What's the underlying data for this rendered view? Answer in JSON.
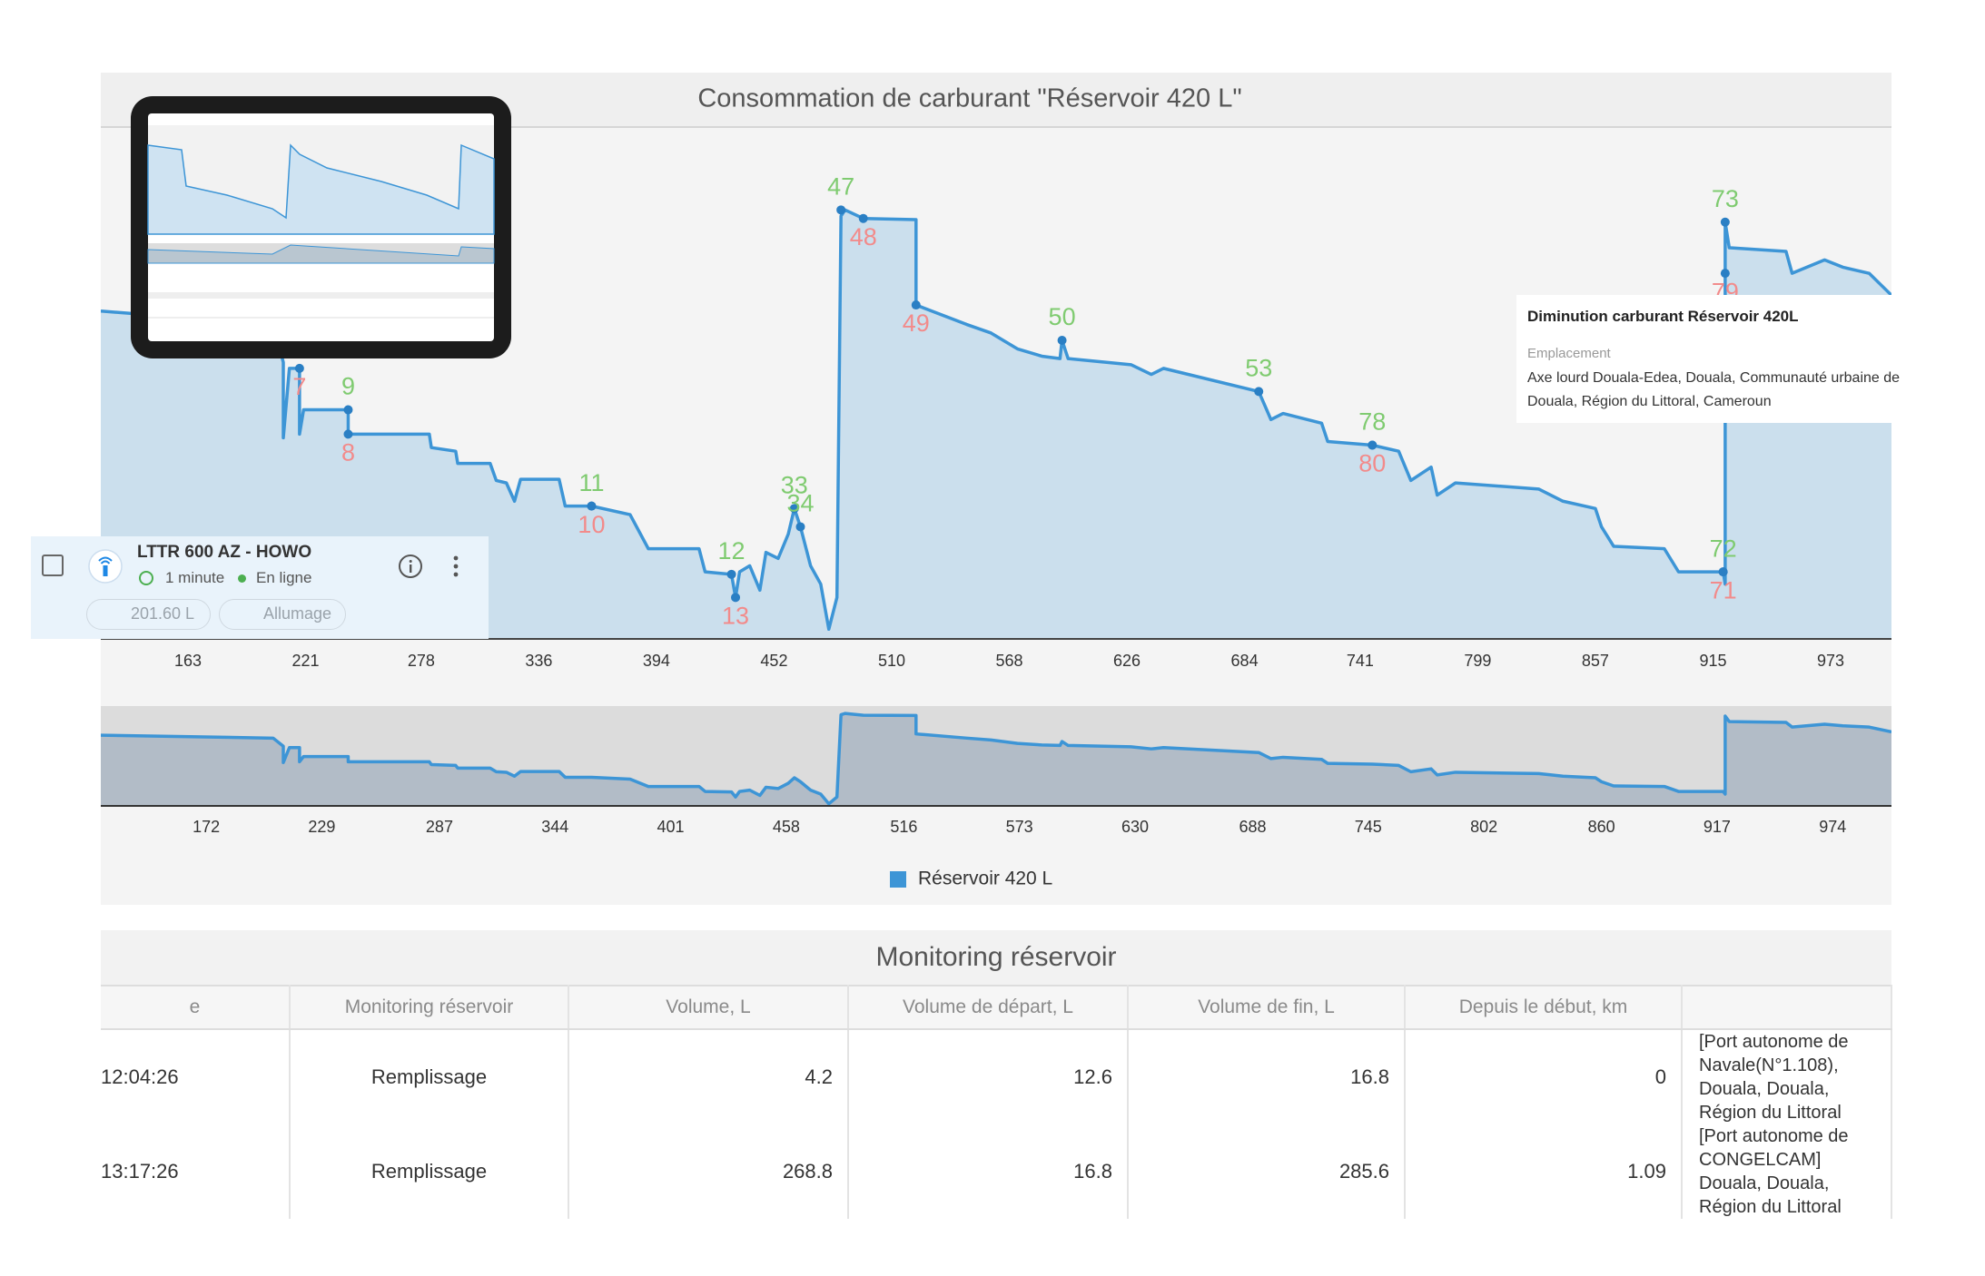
{
  "chart_data": {
    "type": "line",
    "title": "Consommation de carburant \"Réservoir 420 L\"",
    "x": [
      120,
      205,
      210,
      210,
      213,
      218,
      218,
      220,
      242,
      242,
      282,
      283,
      295,
      296,
      312,
      315,
      320,
      324,
      327,
      346,
      349,
      362,
      381,
      390,
      415,
      418,
      431,
      433,
      435,
      440,
      445,
      448,
      454,
      459,
      462,
      465,
      470,
      475,
      479,
      483,
      485,
      487,
      496,
      522,
      522,
      547,
      559,
      572,
      584,
      593,
      594,
      597,
      628,
      638,
      644,
      691,
      697,
      703,
      722,
      725,
      747,
      760,
      766,
      776,
      779,
      788,
      829,
      841,
      857,
      860,
      866,
      891,
      898,
      920,
      921,
      921,
      923,
      951,
      954,
      970,
      979,
      992,
      1003
    ],
    "series": [
      {
        "name": "Réservoir 420 L",
        "color": "#3d95d6",
        "values": [
          269,
          258,
          227,
          165,
          222,
          222,
          168,
          188,
          188,
          168,
          168,
          157,
          154,
          144,
          144,
          130,
          128,
          113,
          131,
          131,
          109,
          109,
          102,
          74,
          74,
          55,
          53,
          34,
          55,
          60,
          40,
          71,
          66,
          86,
          107,
          92,
          60,
          45,
          8,
          34,
          347,
          352,
          345,
          344,
          274,
          258,
          251,
          238,
          232,
          230,
          245,
          230,
          225,
          217,
          222,
          203,
          180,
          185,
          177,
          162,
          159,
          154,
          130,
          141,
          118,
          128,
          123,
          113,
          107,
          92,
          76,
          74,
          55,
          55,
          45,
          342,
          321,
          318,
          300,
          311,
          305,
          300,
          282
        ]
      }
    ],
    "xlim": [
      120,
      1003
    ],
    "ylim": [
      0,
      420
    ],
    "xticks": [
      163,
      221,
      278,
      336,
      394,
      452,
      510,
      568,
      626,
      684,
      741,
      799,
      857,
      915,
      973
    ],
    "navigator": {
      "ylim": [
        0,
        380
      ],
      "xticks": [
        172,
        229,
        287,
        344,
        401,
        458,
        516,
        573,
        630,
        688,
        745,
        802,
        860,
        917,
        974
      ]
    },
    "colors": {
      "increase": "#7fcb70",
      "decrease": "#f28b8b"
    },
    "markers": [
      {
        "label": 47,
        "kind": "increase",
        "x": 485,
        "y": 352
      },
      {
        "label": 48,
        "kind": "decrease",
        "x": 496,
        "y": 345
      },
      {
        "label": 49,
        "kind": "decrease",
        "x": 522,
        "y": 274
      },
      {
        "label": 50,
        "kind": "increase",
        "x": 594,
        "y": 245
      },
      {
        "label": 9,
        "kind": "increase",
        "x": 242,
        "y": 188
      },
      {
        "label": 8,
        "kind": "decrease",
        "x": 242,
        "y": 168
      },
      {
        "label": 7,
        "kind": "decrease",
        "x": 218,
        "y": 222
      },
      {
        "label": 11,
        "kind": "increase",
        "x": 362,
        "y": 109
      },
      {
        "label": 10,
        "kind": "decrease",
        "x": 362,
        "y": 109
      },
      {
        "label": 12,
        "kind": "increase",
        "x": 431,
        "y": 53
      },
      {
        "label": 13,
        "kind": "decrease",
        "x": 433,
        "y": 34
      },
      {
        "label": 33,
        "kind": "increase",
        "x": 462,
        "y": 107
      },
      {
        "label": 34,
        "kind": "increase",
        "x": 465,
        "y": 92
      },
      {
        "label": 53,
        "kind": "increase",
        "x": 691,
        "y": 203
      },
      {
        "label": 78,
        "kind": "increase",
        "x": 747,
        "y": 159
      },
      {
        "label": 80,
        "kind": "decrease",
        "x": 747,
        "y": 159
      },
      {
        "label": 72,
        "kind": "increase",
        "x": 920,
        "y": 55
      },
      {
        "label": 71,
        "kind": "decrease",
        "x": 920,
        "y": 55
      },
      {
        "label": 73,
        "kind": "increase",
        "x": 921,
        "y": 342
      },
      {
        "label": 79,
        "kind": "decrease",
        "x": 921,
        "y": 300
      }
    ],
    "legend": "bottom"
  },
  "tooltip": {
    "title": "Diminution carburant Réservoir 420L",
    "label": "Emplacement",
    "text": "Axe lourd Douala-Edea, Douala, Communauté urbaine de Douala, Région du Littoral, Cameroun"
  },
  "vehicle_card": {
    "name": "LTTR 600 AZ - HOWO",
    "interval": "1 minute",
    "status": "En ligne",
    "fuel": "201.60 L",
    "ignition": "Allumage"
  },
  "table": {
    "title": "Monitoring réservoir",
    "headers": [
      "e",
      "Monitoring réservoir",
      "Volume, L",
      "Volume de départ, L",
      "Volume de fin, L",
      "Depuis le début, km"
    ],
    "rows": [
      [
        "12:04:26",
        "Remplissage",
        4.2,
        12.6,
        16.8,
        0,
        "[Port autonome de Navale(N°1.108), Douala, Douala, Région du Littoral"
      ],
      [
        "13:17:26",
        "Remplissage",
        268.8,
        16.8,
        285.6,
        1.09,
        "[Port autonome de CONGELCAM] Douala, Douala, Région du Littoral"
      ]
    ]
  }
}
